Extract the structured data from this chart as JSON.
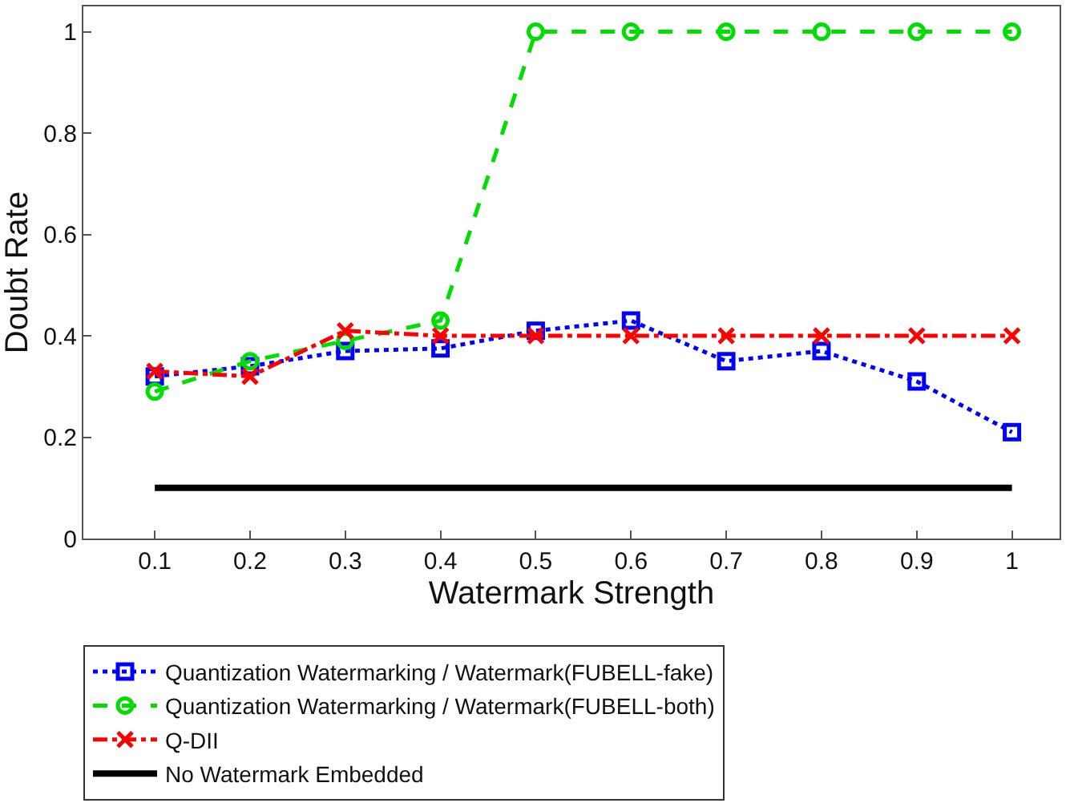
{
  "chart_data": {
    "type": "line",
    "xlabel": "Watermark Strength",
    "ylabel": "Doubt Rate",
    "x": [
      0.1,
      0.2,
      0.3,
      0.4,
      0.5,
      0.6,
      0.7,
      0.8,
      0.9,
      1
    ],
    "series": [
      {
        "name": "Quantization Watermarking / Watermark(FUBELL-fake)",
        "color": "#0000ff",
        "marker": "square",
        "line_style": "dotted",
        "values": [
          0.32,
          0.34,
          0.37,
          0.375,
          0.41,
          0.43,
          0.35,
          0.37,
          0.31,
          0.21
        ]
      },
      {
        "name": "Quantization Watermarking / Watermark(FUBELL-both)",
        "color": "#00dd00",
        "marker": "circle",
        "line_style": "dashed",
        "values": [
          0.29,
          0.35,
          0.39,
          0.43,
          1,
          1,
          1,
          1,
          1,
          1
        ]
      },
      {
        "name": "Q-DII",
        "color": "#ff0000",
        "marker": "cross",
        "line_style": "dashdot",
        "values": [
          0.33,
          0.32,
          0.41,
          0.4,
          0.4,
          0.4,
          0.4,
          0.4,
          0.4,
          0.4
        ]
      },
      {
        "name": "No Watermark Embedded",
        "color": "#000000",
        "marker": "none",
        "line_style": "solid",
        "values": [
          0.1,
          0.1,
          0.1,
          0.1,
          0.1,
          0.1,
          0.1,
          0.1,
          0.1,
          0.1
        ]
      }
    ],
    "xlim": [
      0.025,
      1.05
    ],
    "xticks": [
      0.1,
      0.2,
      0.3,
      0.4,
      0.5,
      0.6,
      0.7,
      0.8,
      0.9,
      1
    ],
    "ylim": [
      0,
      1.05
    ],
    "yticks": [
      0,
      0.2,
      0.4,
      0.6,
      0.8,
      1
    ],
    "legend": "bottom"
  }
}
